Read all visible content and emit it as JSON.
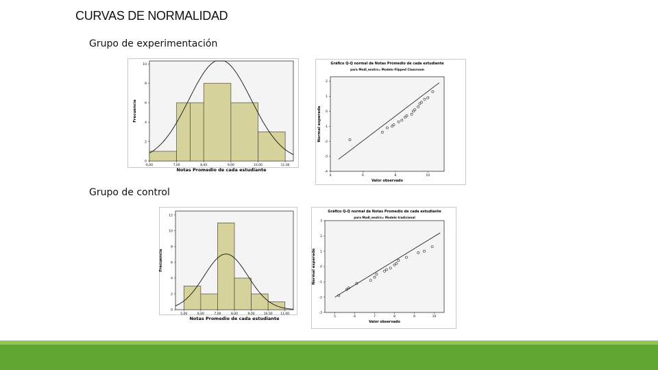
{
  "slide": {
    "title": "CURVAS DE NORMALIDAD",
    "label_experimental": "Grupo de experimentación",
    "label_control": "Grupo de control"
  },
  "colors": {
    "bar_fill": "#d6d29c",
    "bar_stroke": "#4a4a3a",
    "plot_bg": "#f4f4f4",
    "footer_light": "#90c656",
    "footer_dark": "#5fa632"
  },
  "chart_data": [
    {
      "id": "hist-exp",
      "type": "bar",
      "xlabel": "Notas Promedio de cada estudiante",
      "ylabel": "Frecuencia",
      "xlim": [
        6,
        11.3
      ],
      "ylim": [
        0,
        10.3
      ],
      "xticks": [
        6,
        7,
        8,
        9,
        10,
        11
      ],
      "xtick_labels": [
        "6,00",
        "7,00",
        "8,00",
        "9,00",
        "10,00",
        "11,00"
      ],
      "yticks": [
        0,
        2,
        4,
        6,
        8,
        10
      ],
      "ytick_labels": [
        "0",
        "2",
        "4",
        "6",
        "8",
        "10"
      ],
      "bins": [
        [
          6.0,
          7.0
        ],
        [
          7.0,
          7.5
        ],
        [
          7.5,
          8.0
        ],
        [
          8.0,
          9.0
        ],
        [
          9.0,
          10.0
        ],
        [
          10.0,
          11.0
        ]
      ],
      "bin_starts": [
        6.0,
        7.0,
        7.5,
        8.0,
        9.0,
        10.0
      ],
      "bin_ends": [
        7.0,
        7.5,
        8.0,
        9.0,
        10.0,
        11.0
      ],
      "values": [
        1,
        6,
        6,
        8,
        6,
        3
      ],
      "normal_curve": {
        "mean": 8.6,
        "sd": 1.15,
        "n": 30
      }
    },
    {
      "id": "qq-exp",
      "type": "scatter",
      "title": "Gráfico Q-Q normal de Notas Promedio de cada estudiante",
      "subtitle": "para Modl_enstrz= Modelo Flipped Classroom",
      "xlabel": "Valor observado",
      "ylabel": "Normal esperado",
      "xlim": [
        4,
        11
      ],
      "ylim": [
        -4,
        2.3
      ],
      "xticks": [
        4,
        6,
        8,
        10
      ],
      "xtick_labels": [
        "4",
        "6",
        "8",
        "10"
      ],
      "yticks": [
        2,
        1,
        0,
        -1,
        -2,
        -3,
        -4
      ],
      "ytick_labels": [
        "2",
        "1",
        "0",
        "-1",
        "-2",
        "-3",
        "-4"
      ],
      "line": {
        "x": [
          4.5,
          10.7
        ],
        "y": [
          -3.2,
          1.9
        ]
      },
      "x": [
        5.2,
        7.2,
        7.5,
        7.8,
        7.9,
        8.2,
        8.4,
        8.6,
        8.7,
        9.0,
        9.1,
        9.2,
        9.4,
        9.5,
        9.6,
        9.8,
        10.0,
        10.3
      ],
      "y": [
        -1.9,
        -1.4,
        -1.1,
        -1.0,
        -0.9,
        -0.7,
        -0.6,
        -0.4,
        -0.3,
        -0.2,
        0.0,
        0.1,
        0.3,
        0.5,
        0.6,
        0.8,
        0.9,
        1.3
      ]
    },
    {
      "id": "hist-ctl",
      "type": "bar",
      "xlabel": "Notas Promedio de cada estudiante",
      "ylabel": "Frecuencia",
      "xlim": [
        4.5,
        11.5
      ],
      "ylim": [
        0,
        12.5
      ],
      "xticks": [
        5,
        6,
        7,
        8,
        9,
        10,
        11
      ],
      "xtick_labels": [
        "5,00",
        "6,00",
        "7,00",
        "8,00",
        "9,00",
        "10,00",
        "11,00"
      ],
      "yticks": [
        0,
        2,
        4,
        6,
        8,
        10,
        12
      ],
      "ytick_labels": [
        "0",
        "2",
        "4",
        "6",
        "8",
        "10",
        "12"
      ],
      "bins": [
        [
          5,
          6
        ],
        [
          6,
          7
        ],
        [
          7,
          8
        ],
        [
          8,
          9
        ],
        [
          9,
          10
        ],
        [
          10,
          11
        ]
      ],
      "bin_starts": [
        5,
        6,
        7,
        8,
        9,
        10
      ],
      "bin_ends": [
        6,
        7,
        8,
        9,
        10,
        11
      ],
      "values": [
        3,
        2,
        11,
        4,
        2,
        1
      ],
      "normal_curve": {
        "mean": 7.5,
        "sd": 1.3,
        "n": 23
      }
    },
    {
      "id": "qq-ctl",
      "type": "scatter",
      "title": "Gráfico Q-Q normal de Notas Promedio de cada estudiante",
      "subtitle": "para Modl_enstrz= Modelo tradicional",
      "xlabel": "Valor observado",
      "ylabel": "Normal esperado",
      "xlim": [
        4.5,
        10.5
      ],
      "ylim": [
        -3,
        3
      ],
      "xticks": [
        5,
        6,
        7,
        8,
        9,
        10
      ],
      "xtick_labels": [
        "5",
        "6",
        "7",
        "8",
        "9",
        "10"
      ],
      "yticks": [
        3,
        2,
        1,
        0,
        -1,
        -2,
        -3
      ],
      "ytick_labels": [
        "3",
        "2",
        "1",
        "0",
        "-1",
        "-2",
        "-3"
      ],
      "line": {
        "x": [
          5.0,
          10.3
        ],
        "y": [
          -2.0,
          2.2
        ]
      },
      "x": [
        5.2,
        5.6,
        5.7,
        6.1,
        6.8,
        7.0,
        7.1,
        7.5,
        7.6,
        7.8,
        8.0,
        8.1,
        8.2,
        8.6,
        9.2,
        9.5,
        9.9
      ],
      "y": [
        -1.9,
        -1.5,
        -1.4,
        -1.1,
        -0.9,
        -0.7,
        -0.5,
        -0.3,
        -0.2,
        -0.1,
        0.1,
        0.2,
        0.4,
        0.6,
        0.9,
        1.0,
        1.3
      ]
    }
  ]
}
